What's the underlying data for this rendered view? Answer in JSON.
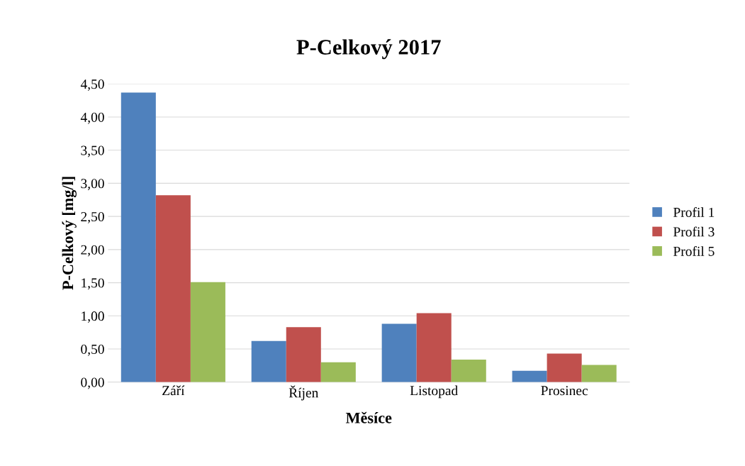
{
  "chart_data": {
    "type": "bar",
    "title": "P-Celkový 2017",
    "xlabel": "Měsíce",
    "ylabel": "P-Celkový [mg/l]",
    "categories": [
      "Září",
      "Říjen",
      "Listopad",
      "Prosinec"
    ],
    "series": [
      {
        "name": "Profil 1",
        "color": "#4f81bd",
        "values": [
          4.37,
          0.62,
          0.88,
          0.17
        ]
      },
      {
        "name": "Profil 3",
        "color": "#c0504d",
        "values": [
          2.82,
          0.83,
          1.04,
          0.43
        ]
      },
      {
        "name": "Profil 5",
        "color": "#9bbb59",
        "values": [
          1.51,
          0.3,
          0.34,
          0.26
        ]
      }
    ],
    "ylim": [
      0,
      4.5
    ],
    "yticks": [
      {
        "value": 0,
        "label": "0,00"
      },
      {
        "value": 0.5,
        "label": "0,50"
      },
      {
        "value": 1,
        "label": "1,00"
      },
      {
        "value": 1.5,
        "label": "1,50"
      },
      {
        "value": 2,
        "label": "2,00"
      },
      {
        "value": 2.5,
        "label": "2,50"
      },
      {
        "value": 3,
        "label": "3,00"
      },
      {
        "value": 3.5,
        "label": "3,50"
      },
      {
        "value": 4,
        "label": "4,00"
      },
      {
        "value": 4.5,
        "label": "4,50"
      }
    ],
    "grid": "y",
    "legend": "right"
  }
}
